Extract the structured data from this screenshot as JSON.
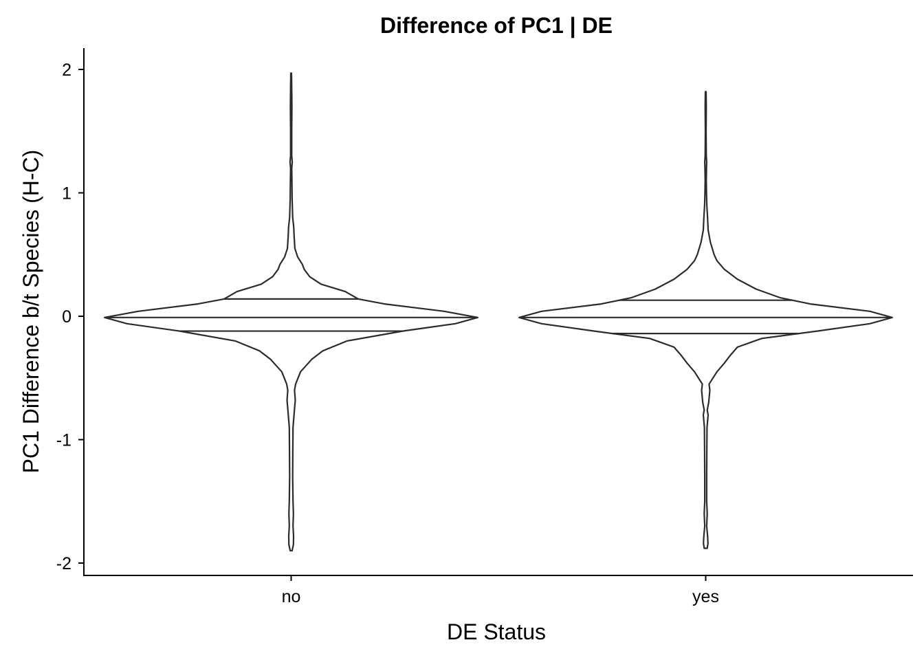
{
  "chart_data": {
    "type": "violin",
    "title": "Difference of PC1 | DE",
    "xlabel": "DE Status",
    "ylabel": "PC1 Difference b/t Species (H-C)",
    "ylim": [
      -2.1,
      2.18
    ],
    "yticks": [
      -2,
      -1,
      0,
      1,
      2
    ],
    "grid": false,
    "legend": "none",
    "categories": [
      "no",
      "yes"
    ],
    "series": [
      {
        "category": "no",
        "min": -1.9,
        "max": 1.97,
        "quantiles": {
          "q25": -0.12,
          "median": -0.01,
          "q75": 0.14
        },
        "density": [
          [
            -1.9,
            0.005
          ],
          [
            -1.85,
            0.012
          ],
          [
            -1.78,
            0.013
          ],
          [
            -1.7,
            0.01
          ],
          [
            -1.6,
            0.012
          ],
          [
            -1.5,
            0.01
          ],
          [
            -1.3,
            0.008
          ],
          [
            -1.1,
            0.009
          ],
          [
            -0.9,
            0.01
          ],
          [
            -0.75,
            0.018
          ],
          [
            -0.68,
            0.022
          ],
          [
            -0.6,
            0.018
          ],
          [
            -0.55,
            0.024
          ],
          [
            -0.45,
            0.05
          ],
          [
            -0.35,
            0.11
          ],
          [
            -0.28,
            0.17
          ],
          [
            -0.2,
            0.3
          ],
          [
            -0.12,
            0.6
          ],
          [
            -0.06,
            0.88
          ],
          [
            -0.01,
            1.0
          ],
          [
            0.04,
            0.82
          ],
          [
            0.1,
            0.5
          ],
          [
            0.14,
            0.36
          ],
          [
            0.2,
            0.29
          ],
          [
            0.26,
            0.16
          ],
          [
            0.32,
            0.1
          ],
          [
            0.38,
            0.07
          ],
          [
            0.42,
            0.06
          ],
          [
            0.48,
            0.035
          ],
          [
            0.55,
            0.02
          ],
          [
            0.65,
            0.016
          ],
          [
            0.72,
            0.014
          ],
          [
            0.8,
            0.008
          ],
          [
            0.95,
            0.005
          ],
          [
            1.1,
            0.004
          ],
          [
            1.2,
            0.003
          ],
          [
            1.25,
            0.006
          ],
          [
            1.3,
            0.003
          ],
          [
            1.5,
            0.003
          ],
          [
            1.7,
            0.004
          ],
          [
            1.85,
            0.003
          ],
          [
            1.97,
            0.002
          ]
        ]
      },
      {
        "category": "yes",
        "min": -1.88,
        "max": 1.82,
        "quantiles": {
          "q25": -0.14,
          "median": -0.01,
          "q75": 0.13
        },
        "density": [
          [
            -1.88,
            0.008
          ],
          [
            -1.84,
            0.012
          ],
          [
            -1.78,
            0.01
          ],
          [
            -1.7,
            0.005
          ],
          [
            -1.6,
            0.008
          ],
          [
            -1.5,
            0.005
          ],
          [
            -1.3,
            0.005
          ],
          [
            -1.1,
            0.006
          ],
          [
            -0.9,
            0.007
          ],
          [
            -0.8,
            0.013
          ],
          [
            -0.76,
            0.008
          ],
          [
            -0.7,
            0.016
          ],
          [
            -0.6,
            0.022
          ],
          [
            -0.55,
            0.018
          ],
          [
            -0.45,
            0.06
          ],
          [
            -0.38,
            0.1
          ],
          [
            -0.32,
            0.13
          ],
          [
            -0.25,
            0.17
          ],
          [
            -0.18,
            0.3
          ],
          [
            -0.12,
            0.6
          ],
          [
            -0.06,
            0.88
          ],
          [
            -0.01,
            1.0
          ],
          [
            0.04,
            0.88
          ],
          [
            0.1,
            0.56
          ],
          [
            0.15,
            0.4
          ],
          [
            0.22,
            0.27
          ],
          [
            0.3,
            0.17
          ],
          [
            0.38,
            0.1
          ],
          [
            0.45,
            0.06
          ],
          [
            0.5,
            0.045
          ],
          [
            0.6,
            0.025
          ],
          [
            0.7,
            0.013
          ],
          [
            0.8,
            0.01
          ],
          [
            0.9,
            0.006
          ],
          [
            1.0,
            0.004
          ],
          [
            1.1,
            0.003
          ],
          [
            1.2,
            0.004
          ],
          [
            1.25,
            0.005
          ],
          [
            1.3,
            0.003
          ],
          [
            1.5,
            0.002
          ],
          [
            1.7,
            0.003
          ],
          [
            1.82,
            0.002
          ]
        ]
      }
    ]
  }
}
